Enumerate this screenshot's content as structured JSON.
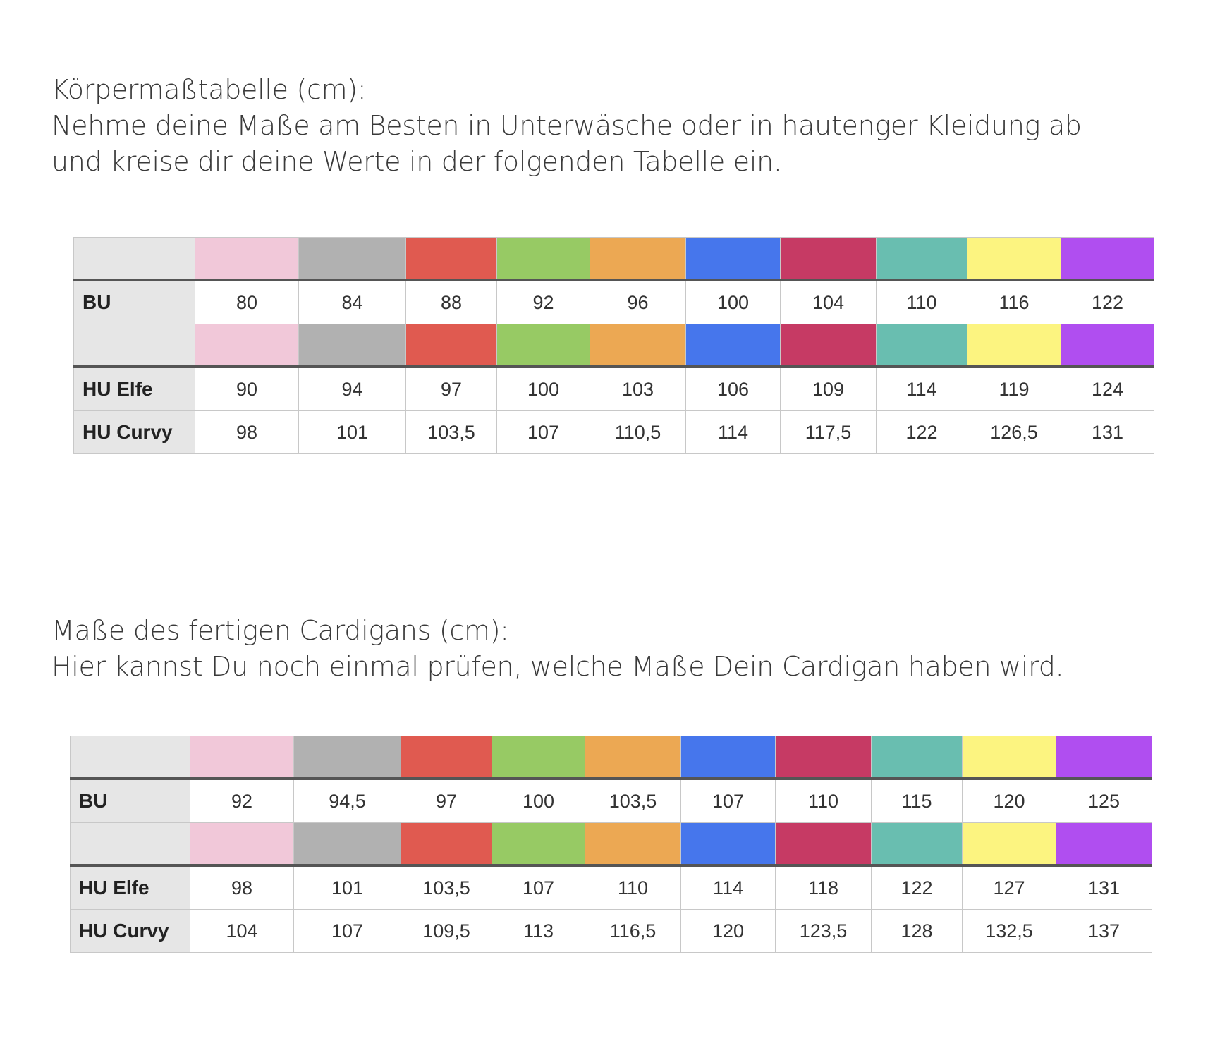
{
  "intro1": {
    "lines": [
      "Körpermaßtabelle (cm):",
      "Nehme deine Maße am Besten in Unterwäsche oder in hautenger Kleidung ab",
      "und kreise dir deine Werte in der folgenden Tabelle ein."
    ]
  },
  "intro2": {
    "lines": [
      "Maße des fertigen Cardigans (cm):",
      "Hier kannst Du noch einmal prüfen, welche Maße Dein Cardigan haben wird."
    ]
  },
  "size_colors": [
    "#f1c8d9",
    "#b1b1b1",
    "#e05a50",
    "#97ca64",
    "#eca853",
    "#4676ec",
    "#c63a64",
    "#69beb0",
    "#fcf480",
    "#b04ef0"
  ],
  "table1": {
    "rows": [
      {
        "label": "BU",
        "values": [
          "80",
          "84",
          "88",
          "92",
          "96",
          "100",
          "104",
          "110",
          "116",
          "122"
        ]
      },
      {
        "label": "HU Elfe",
        "values": [
          "90",
          "94",
          "97",
          "100",
          "103",
          "106",
          "109",
          "114",
          "119",
          "124"
        ]
      },
      {
        "label": "HU Curvy",
        "values": [
          "98",
          "101",
          "103,5",
          "107",
          "110,5",
          "114",
          "117,5",
          "122",
          "126,5",
          "131"
        ]
      }
    ]
  },
  "table2": {
    "rows": [
      {
        "label": "BU",
        "values": [
          "92",
          "94,5",
          "97",
          "100",
          "103,5",
          "107",
          "110",
          "115",
          "120",
          "125"
        ]
      },
      {
        "label": "HU Elfe",
        "values": [
          "98",
          "101",
          "103,5",
          "107",
          "110",
          "114",
          "118",
          "122",
          "127",
          "131"
        ]
      },
      {
        "label": "HU Curvy",
        "values": [
          "104",
          "107",
          "109,5",
          "113",
          "116,5",
          "120",
          "123,5",
          "128",
          "132,5",
          "137"
        ]
      }
    ]
  }
}
